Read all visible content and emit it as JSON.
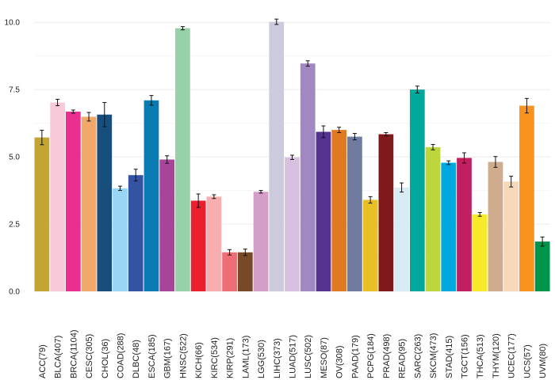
{
  "chart_data": {
    "type": "bar",
    "title": "",
    "xlabel": "",
    "ylabel": "",
    "ylim": [
      0,
      10.3
    ],
    "yticks": [
      0,
      2.5,
      5,
      7.5,
      10
    ],
    "ytick_labels": [
      "0.0",
      "2.5",
      "5.0",
      "7.5",
      "10.0"
    ],
    "grid": true,
    "categories": [
      "ACC(79)",
      "BLCA(407)",
      "BRCA(1104)",
      "CESC(305)",
      "CHOL(36)",
      "COAD(288)",
      "DLBC(48)",
      "ESCA(185)",
      "GBM(167)",
      "HNSC(522)",
      "KICH(66)",
      "KIRC(534)",
      "KIRP(291)",
      "LAML(173)",
      "LGG(530)",
      "LIHC(373)",
      "LUAD(517)",
      "LUSC(502)",
      "MESO(87)",
      "OV(308)",
      "PAAD(179)",
      "PCPG(184)",
      "PRAD(498)",
      "READ(95)",
      "SARC(263)",
      "SKCM(473)",
      "STAD(415)",
      "TGCT(156)",
      "THCA(513)",
      "THYM(120)",
      "UCEC(177)",
      "UCS(57)",
      "UVM(80)"
    ],
    "values": [
      5.72,
      7.02,
      6.68,
      6.49,
      6.57,
      3.83,
      4.32,
      7.1,
      4.9,
      9.78,
      3.37,
      3.52,
      1.45,
      1.45,
      3.7,
      10.02,
      4.98,
      8.47,
      5.93,
      6.0,
      5.75,
      3.4,
      5.84,
      3.86,
      7.5,
      5.36,
      4.78,
      4.96,
      2.86,
      4.81,
      4.08,
      6.9,
      1.85
    ],
    "errors": [
      0.27,
      0.12,
      0.06,
      0.16,
      0.45,
      0.08,
      0.22,
      0.18,
      0.14,
      0.06,
      0.25,
      0.07,
      0.1,
      0.12,
      0.05,
      0.1,
      0.08,
      0.1,
      0.22,
      0.1,
      0.12,
      0.12,
      0.06,
      0.17,
      0.13,
      0.1,
      0.07,
      0.19,
      0.07,
      0.2,
      0.2,
      0.27,
      0.17
    ],
    "colors": [
      "#c2a532",
      "#f8c9d9",
      "#ea2f91",
      "#f2a86a",
      "#174e7c",
      "#9ad6f3",
      "#3453a2",
      "#0a7ab3",
      "#a9449b",
      "#96d1a9",
      "#ea212d",
      "#f8aeaf",
      "#ec6f77",
      "#774929",
      "#d49ec8",
      "#cccbde",
      "#d7c1df",
      "#a188c0",
      "#543391",
      "#e07a22",
      "#6f7b9f",
      "#e6c024",
      "#80191c",
      "#d8ecf6",
      "#00a99c",
      "#bcd63b",
      "#00a8e2",
      "#c01f60",
      "#f6ea2b",
      "#cfac8e",
      "#f7d8b9",
      "#f7931e",
      "#00944a"
    ]
  }
}
